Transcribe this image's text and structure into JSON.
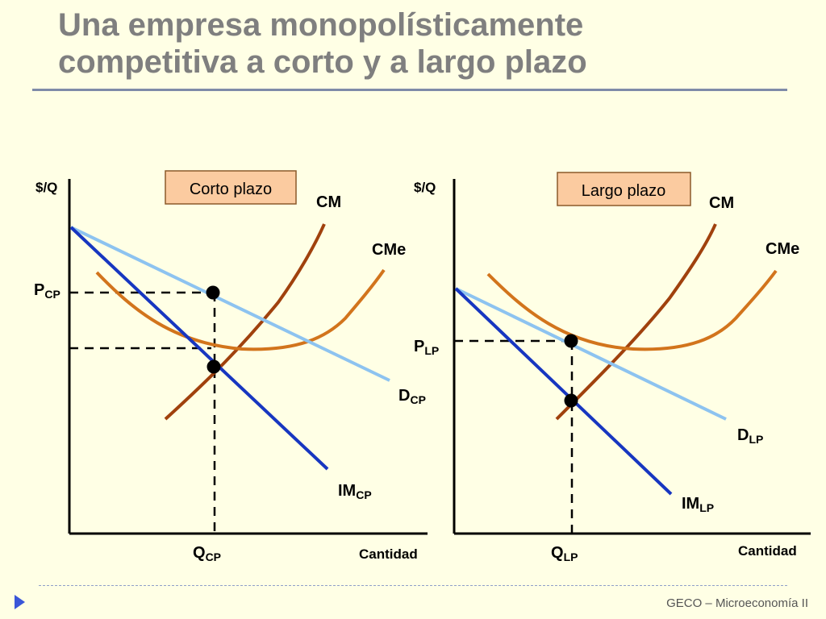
{
  "slide": {
    "title_line1": "Una empresa monopolísticamente",
    "title_line2": "competitiva a corto y a largo plazo",
    "footer": "GECO – Microeconomía II"
  },
  "colors": {
    "background": "#FFFFE5",
    "title": "#7F7F7F",
    "cm_curve": "#A0410D",
    "cme_curve": "#D2741C",
    "demand_curve": "#8DC3F0",
    "mr_curve": "#1736C0",
    "panel_label_bg": "#FBCBA0"
  },
  "panels": {
    "short_run": {
      "panel_label": "Corto plazo",
      "y_axis_label": "$/Q",
      "x_axis_label": "Cantidad",
      "cm": "CM",
      "cme": "CMe",
      "price_main": "P",
      "price_sub": "CP",
      "qty_main": "Q",
      "qty_sub": "CP",
      "demand_main": "D",
      "demand_sub": "CP",
      "mr_main": "IM",
      "mr_sub": "CP"
    },
    "long_run": {
      "panel_label": "Largo plazo",
      "y_axis_label": "$/Q",
      "x_axis_label": "Cantidad",
      "cm": "CM",
      "cme": "CMe",
      "price_main": "P",
      "price_sub": "LP",
      "qty_main": "Q",
      "qty_sub": "LP",
      "demand_main": "D",
      "demand_sub": "LP",
      "mr_main": "IM",
      "mr_sub": "LP"
    }
  }
}
